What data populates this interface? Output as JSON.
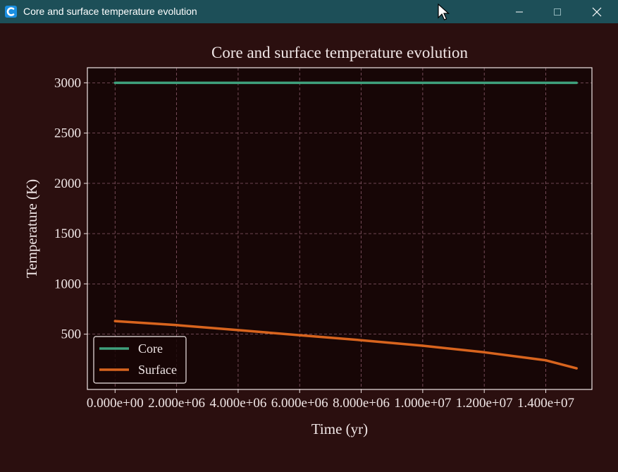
{
  "window": {
    "title": "Core and surface temperature evolution",
    "icons": {
      "app": "app-c-icon",
      "minimize": "minimize-icon",
      "maximize": "maximize-icon",
      "close": "close-icon"
    }
  },
  "colors": {
    "background": "#2b0f0f",
    "plot_background": "#170606",
    "titlebar": "#1d4f58",
    "text": "#f0e6e6",
    "grid": "#8a5a6a",
    "core": "#3fa07c",
    "surface": "#d8641e"
  },
  "chart_data": {
    "type": "line",
    "title": "Core and surface temperature evolution",
    "xlabel": "Time (yr)",
    "ylabel": "Temperature (K)",
    "xlim": [
      -900000,
      15500000
    ],
    "ylim": [
      -50,
      3150
    ],
    "xticks": [
      0,
      2000000,
      4000000,
      6000000,
      8000000,
      10000000,
      12000000,
      14000000
    ],
    "xtick_labels": [
      "0.000e+00",
      "2.000e+06",
      "4.000e+06",
      "6.000e+06",
      "8.000e+06",
      "1.000e+07",
      "1.200e+07",
      "1.400e+07"
    ],
    "yticks": [
      500,
      1000,
      1500,
      2000,
      2500,
      3000
    ],
    "ytick_labels": [
      "500",
      "1000",
      "1500",
      "2000",
      "2500",
      "3000"
    ],
    "grid": true,
    "legend": "lower-left",
    "series": [
      {
        "name": "Core",
        "color": "#3fa07c",
        "x": [
          0,
          15000000
        ],
        "y": [
          3000,
          3000
        ]
      },
      {
        "name": "Surface",
        "color": "#d8641e",
        "x": [
          0,
          2000000,
          4000000,
          6000000,
          8000000,
          10000000,
          12000000,
          14000000,
          15000000
        ],
        "y": [
          630,
          590,
          540,
          490,
          440,
          385,
          320,
          240,
          160
        ]
      }
    ]
  }
}
